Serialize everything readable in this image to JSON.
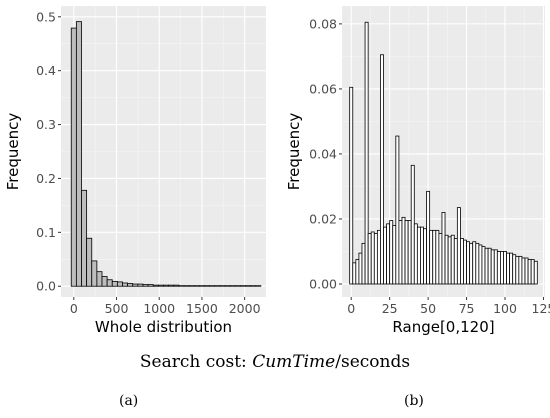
{
  "caption": {
    "prefix": "Search cost: ",
    "italic": "CumTime",
    "suffix": "/seconds"
  },
  "panel_labels": [
    "(a)",
    "(b)"
  ],
  "colors": {
    "panel_bg": "#ebebeb",
    "grid_major": "#ffffff",
    "grid_minor": "#f5f5f5",
    "bar_outline": "#000000",
    "bar_fill_a": "#bdbdbd",
    "bar_fill_b": "#ffffff"
  },
  "chart_data": [
    {
      "type": "bar",
      "xlabel": "Whole distribution",
      "ylabel": "Frequency",
      "xlim": [
        -150,
        2250
      ],
      "ylim": [
        -0.02,
        0.52
      ],
      "x_ticks": [
        0,
        500,
        1000,
        1500,
        2000
      ],
      "y_ticks": [
        0.0,
        0.1,
        0.2,
        0.3,
        0.4,
        0.5
      ],
      "y_tick_labels": [
        "0.0",
        "0.1",
        "0.2",
        "0.3",
        "0.4",
        "0.5"
      ],
      "grid": true,
      "bin_width": 60,
      "bin_centers": [
        0,
        60,
        120,
        180,
        240,
        300,
        360,
        420,
        480,
        540,
        600,
        660,
        720,
        780,
        840,
        900,
        960,
        1020,
        1080,
        1140,
        1200,
        1260,
        1320,
        1380,
        1440,
        1500,
        1560,
        1620,
        1680,
        1740,
        1800,
        1860,
        1920,
        1980,
        2040,
        2100,
        2160
      ],
      "values": [
        0.479,
        0.491,
        0.178,
        0.089,
        0.047,
        0.027,
        0.018,
        0.012,
        0.009,
        0.008,
        0.006,
        0.005,
        0.004,
        0.004,
        0.003,
        0.003,
        0.002,
        0.002,
        0.002,
        0.002,
        0.002,
        0.001,
        0.001,
        0.001,
        0.001,
        0.001,
        0.001,
        0.001,
        0.001,
        0.001,
        0.001,
        0.001,
        0.001,
        0.001,
        0.001,
        0.001,
        0.001
      ]
    },
    {
      "type": "bar",
      "xlabel": "Range[0,120]",
      "ylabel": "Frequency",
      "xlim": [
        -6,
        126
      ],
      "ylim": [
        -0.004,
        0.0855
      ],
      "x_ticks": [
        0,
        25,
        50,
        75,
        100,
        125
      ],
      "y_ticks": [
        0.0,
        0.02,
        0.04,
        0.06,
        0.08
      ],
      "y_tick_labels": [
        "0.00",
        "0.02",
        "0.04",
        "0.06",
        "0.08"
      ],
      "grid": true,
      "bin_width": 2,
      "bin_centers": [
        0,
        2,
        4,
        6,
        8,
        10,
        12,
        14,
        16,
        18,
        20,
        22,
        24,
        26,
        28,
        30,
        32,
        34,
        36,
        38,
        40,
        42,
        44,
        46,
        48,
        50,
        52,
        54,
        56,
        58,
        60,
        62,
        64,
        66,
        68,
        70,
        72,
        74,
        76,
        78,
        80,
        82,
        84,
        86,
        88,
        90,
        92,
        94,
        96,
        98,
        100,
        102,
        104,
        106,
        108,
        110,
        112,
        114,
        116,
        118,
        120
      ],
      "values": [
        0.0605,
        0.0065,
        0.0075,
        0.0095,
        0.0125,
        0.0805,
        0.0155,
        0.016,
        0.0155,
        0.0165,
        0.0705,
        0.0175,
        0.0185,
        0.0195,
        0.018,
        0.0455,
        0.0195,
        0.0205,
        0.0195,
        0.0195,
        0.0365,
        0.0185,
        0.0175,
        0.0175,
        0.017,
        0.0285,
        0.0165,
        0.0165,
        0.0165,
        0.0155,
        0.022,
        0.015,
        0.0145,
        0.015,
        0.014,
        0.0235,
        0.014,
        0.0135,
        0.013,
        0.0125,
        0.013,
        0.0125,
        0.012,
        0.0115,
        0.011,
        0.011,
        0.0105,
        0.0105,
        0.01,
        0.01,
        0.01,
        0.0095,
        0.0095,
        0.009,
        0.0085,
        0.0085,
        0.008,
        0.008,
        0.0075,
        0.0075,
        0.007
      ]
    }
  ]
}
